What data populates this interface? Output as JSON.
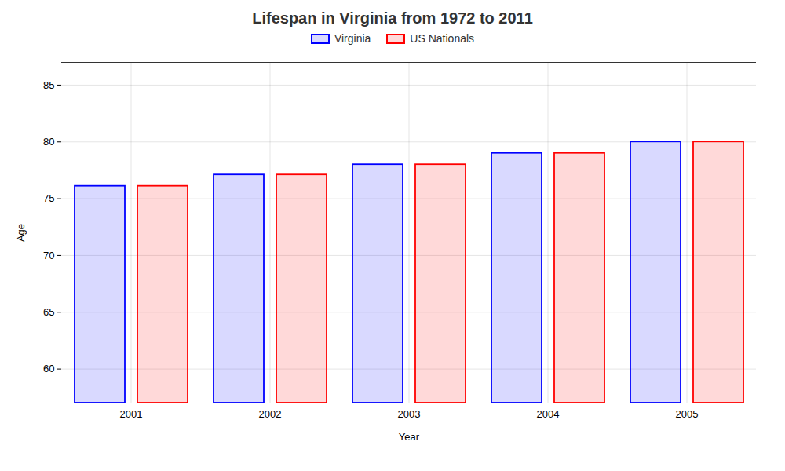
{
  "chart_data": {
    "type": "bar",
    "title": "Lifespan in Virginia from 1972 to 2011",
    "xlabel": "Year",
    "ylabel": "Age",
    "categories": [
      "2001",
      "2002",
      "2003",
      "2004",
      "2005"
    ],
    "series": [
      {
        "name": "Virginia",
        "color": "#0000ff",
        "values": [
          76.1,
          77.1,
          78.0,
          79.0,
          80.0
        ]
      },
      {
        "name": "US Nationals",
        "color": "#ff0000",
        "values": [
          76.1,
          77.1,
          78.0,
          79.0,
          80.0
        ]
      }
    ],
    "ylim": [
      57,
      87
    ],
    "yticks": [
      60,
      65,
      70,
      75,
      80,
      85
    ],
    "grid": true,
    "legend": "top"
  }
}
